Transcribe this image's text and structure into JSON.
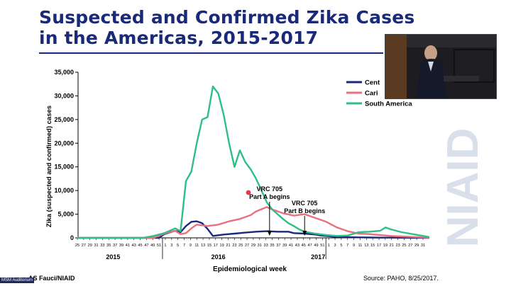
{
  "title_line1": "Suspected and Confirmed Zika Cases",
  "title_line2": "in the Americas, 2015-2017",
  "footer_left": "AS Fauci/NIAID",
  "footer_right": "Source: PAHO, 8/25/2017.",
  "channel_tag": "MSM Auditorium",
  "watermark": "NIAID",
  "colors": {
    "title": "#1a2a78",
    "central_america": "#1a2a78",
    "caribbean": "#e9707e",
    "south_america": "#2fbf86"
  },
  "annotations": [
    {
      "line1": "VRC 705",
      "line2": "Part A begins",
      "week_index": 71
    },
    {
      "line1": "VRC 705",
      "line2": "Part B begins",
      "week_index": 84
    }
  ],
  "chart_data": {
    "type": "line",
    "ylabel": "Zika (suspected and confirmed) cases",
    "xlabel": "Epidemiological week",
    "ylim": [
      0,
      35000
    ],
    "yticks": [
      0,
      5000,
      10000,
      15000,
      20000,
      25000,
      30000,
      35000
    ],
    "ytick_labels": [
      "0",
      "5,000",
      "10,000",
      "15,000",
      "20,000",
      "25,000",
      "30,000",
      "35,000"
    ],
    "x_ticks": [
      "25",
      "27",
      "29",
      "31",
      "33",
      "35",
      "37",
      "39",
      "41",
      "43",
      "45",
      "47",
      "49",
      "51",
      "1",
      "3",
      "5",
      "7",
      "9",
      "11",
      "13",
      "15",
      "17",
      "19",
      "21",
      "23",
      "25",
      "27",
      "29",
      "31",
      "33",
      "35",
      "37",
      "39",
      "41",
      "43",
      "45",
      "47",
      "49",
      "51",
      "1",
      "3",
      "5",
      "7",
      "9",
      "11",
      "13",
      "15",
      "17",
      "19",
      "21",
      "23",
      "25",
      "27",
      "29",
      "31"
    ],
    "year_labels": [
      {
        "label": "2015",
        "week_index": 13
      },
      {
        "label": "2016",
        "week_index": 52
      },
      {
        "label": "2017",
        "week_index": 89
      }
    ],
    "legend_position": "top-right",
    "series": [
      {
        "name": "Central America",
        "legend_label": "Cent",
        "color_key": "central_america",
        "points": [
          [
            0,
            0
          ],
          [
            30,
            0
          ],
          [
            32,
            800
          ],
          [
            36,
            1500
          ],
          [
            38,
            1200
          ],
          [
            40,
            2500
          ],
          [
            42,
            3400
          ],
          [
            44,
            3500
          ],
          [
            46,
            3100
          ],
          [
            48,
            1900
          ],
          [
            50,
            400
          ],
          [
            54,
            700
          ],
          [
            58,
            900
          ],
          [
            62,
            1100
          ],
          [
            66,
            1300
          ],
          [
            70,
            1400
          ],
          [
            74,
            1300
          ],
          [
            78,
            1300
          ],
          [
            80,
            1000
          ],
          [
            84,
            900
          ],
          [
            88,
            700
          ],
          [
            90,
            500
          ],
          [
            92,
            400
          ],
          [
            96,
            200
          ],
          [
            100,
            150
          ],
          [
            104,
            100
          ],
          [
            108,
            80
          ],
          [
            112,
            50
          ],
          [
            116,
            40
          ],
          [
            120,
            30
          ],
          [
            124,
            20
          ],
          [
            128,
            10
          ],
          [
            130,
            0
          ]
        ]
      },
      {
        "name": "Caribbean",
        "legend_label": "Cari",
        "color_key": "caribbean",
        "points": [
          [
            0,
            0
          ],
          [
            28,
            0
          ],
          [
            32,
            900
          ],
          [
            36,
            1500
          ],
          [
            38,
            800
          ],
          [
            40,
            1000
          ],
          [
            42,
            2000
          ],
          [
            44,
            2800
          ],
          [
            48,
            2500
          ],
          [
            52,
            2800
          ],
          [
            56,
            3500
          ],
          [
            60,
            4000
          ],
          [
            64,
            4800
          ],
          [
            66,
            5600
          ],
          [
            70,
            6500
          ],
          [
            72,
            6000
          ],
          [
            76,
            5200
          ],
          [
            80,
            4700
          ],
          [
            84,
            5000
          ],
          [
            88,
            4200
          ],
          [
            92,
            3400
          ],
          [
            96,
            2200
          ],
          [
            100,
            1400
          ],
          [
            104,
            900
          ],
          [
            108,
            800
          ],
          [
            112,
            600
          ],
          [
            116,
            400
          ],
          [
            120,
            300
          ],
          [
            124,
            200
          ],
          [
            128,
            100
          ],
          [
            130,
            50
          ]
        ]
      },
      {
        "name": "South America",
        "legend_label": "South America",
        "color_key": "south_america",
        "points": [
          [
            0,
            0
          ],
          [
            24,
            0
          ],
          [
            28,
            400
          ],
          [
            32,
            1000
          ],
          [
            36,
            2000
          ],
          [
            38,
            1400
          ],
          [
            40,
            12000
          ],
          [
            42,
            14000
          ],
          [
            44,
            20000
          ],
          [
            46,
            25000
          ],
          [
            48,
            25500
          ],
          [
            50,
            32000
          ],
          [
            52,
            30500
          ],
          [
            54,
            26000
          ],
          [
            56,
            20000
          ],
          [
            58,
            15000
          ],
          [
            60,
            18500
          ],
          [
            62,
            16000
          ],
          [
            64,
            14500
          ],
          [
            66,
            12500
          ],
          [
            68,
            10000
          ],
          [
            70,
            7500
          ],
          [
            72,
            6000
          ],
          [
            74,
            5000
          ],
          [
            76,
            4000
          ],
          [
            78,
            3100
          ],
          [
            80,
            2500
          ],
          [
            82,
            1800
          ],
          [
            84,
            1300
          ],
          [
            88,
            900
          ],
          [
            92,
            600
          ],
          [
            96,
            400
          ],
          [
            100,
            500
          ],
          [
            104,
            1200
          ],
          [
            108,
            1300
          ],
          [
            112,
            1500
          ],
          [
            114,
            2200
          ],
          [
            116,
            1800
          ],
          [
            120,
            1200
          ],
          [
            124,
            800
          ],
          [
            128,
            400
          ],
          [
            130,
            200
          ]
        ]
      }
    ]
  }
}
